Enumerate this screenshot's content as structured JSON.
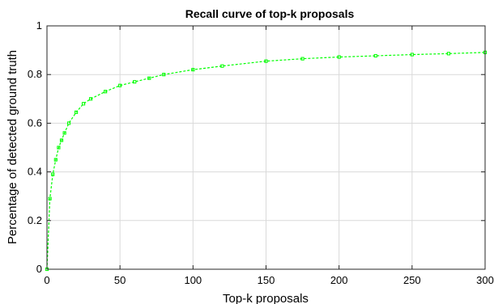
{
  "chart_data": {
    "type": "line",
    "title": "Recall curve of top-k proposals",
    "xlabel": "Top-k proposals",
    "ylabel": "Percentage of detected ground truth",
    "xlim": [
      0,
      300
    ],
    "ylim": [
      0,
      1
    ],
    "x_ticks": [
      0,
      50,
      100,
      150,
      200,
      250,
      300
    ],
    "y_ticks": [
      0,
      0.2,
      0.4,
      0.6,
      0.8,
      1
    ],
    "x_tick_labels": [
      "0",
      "50",
      "100",
      "150",
      "200",
      "250",
      "300"
    ],
    "y_tick_labels": [
      "0",
      "0.2",
      "0.4",
      "0.6",
      "0.8",
      "1"
    ],
    "grid": true,
    "color": "#00ff00",
    "series": [
      {
        "x": [
          0,
          2,
          4,
          6,
          8,
          10,
          12,
          15,
          20,
          25,
          30,
          40,
          50,
          60,
          70,
          80,
          100,
          120,
          150,
          175,
          200,
          225,
          250,
          275,
          300
        ],
        "values": [
          0.0,
          0.29,
          0.39,
          0.45,
          0.5,
          0.53,
          0.56,
          0.6,
          0.645,
          0.68,
          0.7,
          0.73,
          0.755,
          0.77,
          0.785,
          0.8,
          0.82,
          0.835,
          0.855,
          0.865,
          0.872,
          0.877,
          0.882,
          0.886,
          0.891
        ]
      }
    ]
  }
}
